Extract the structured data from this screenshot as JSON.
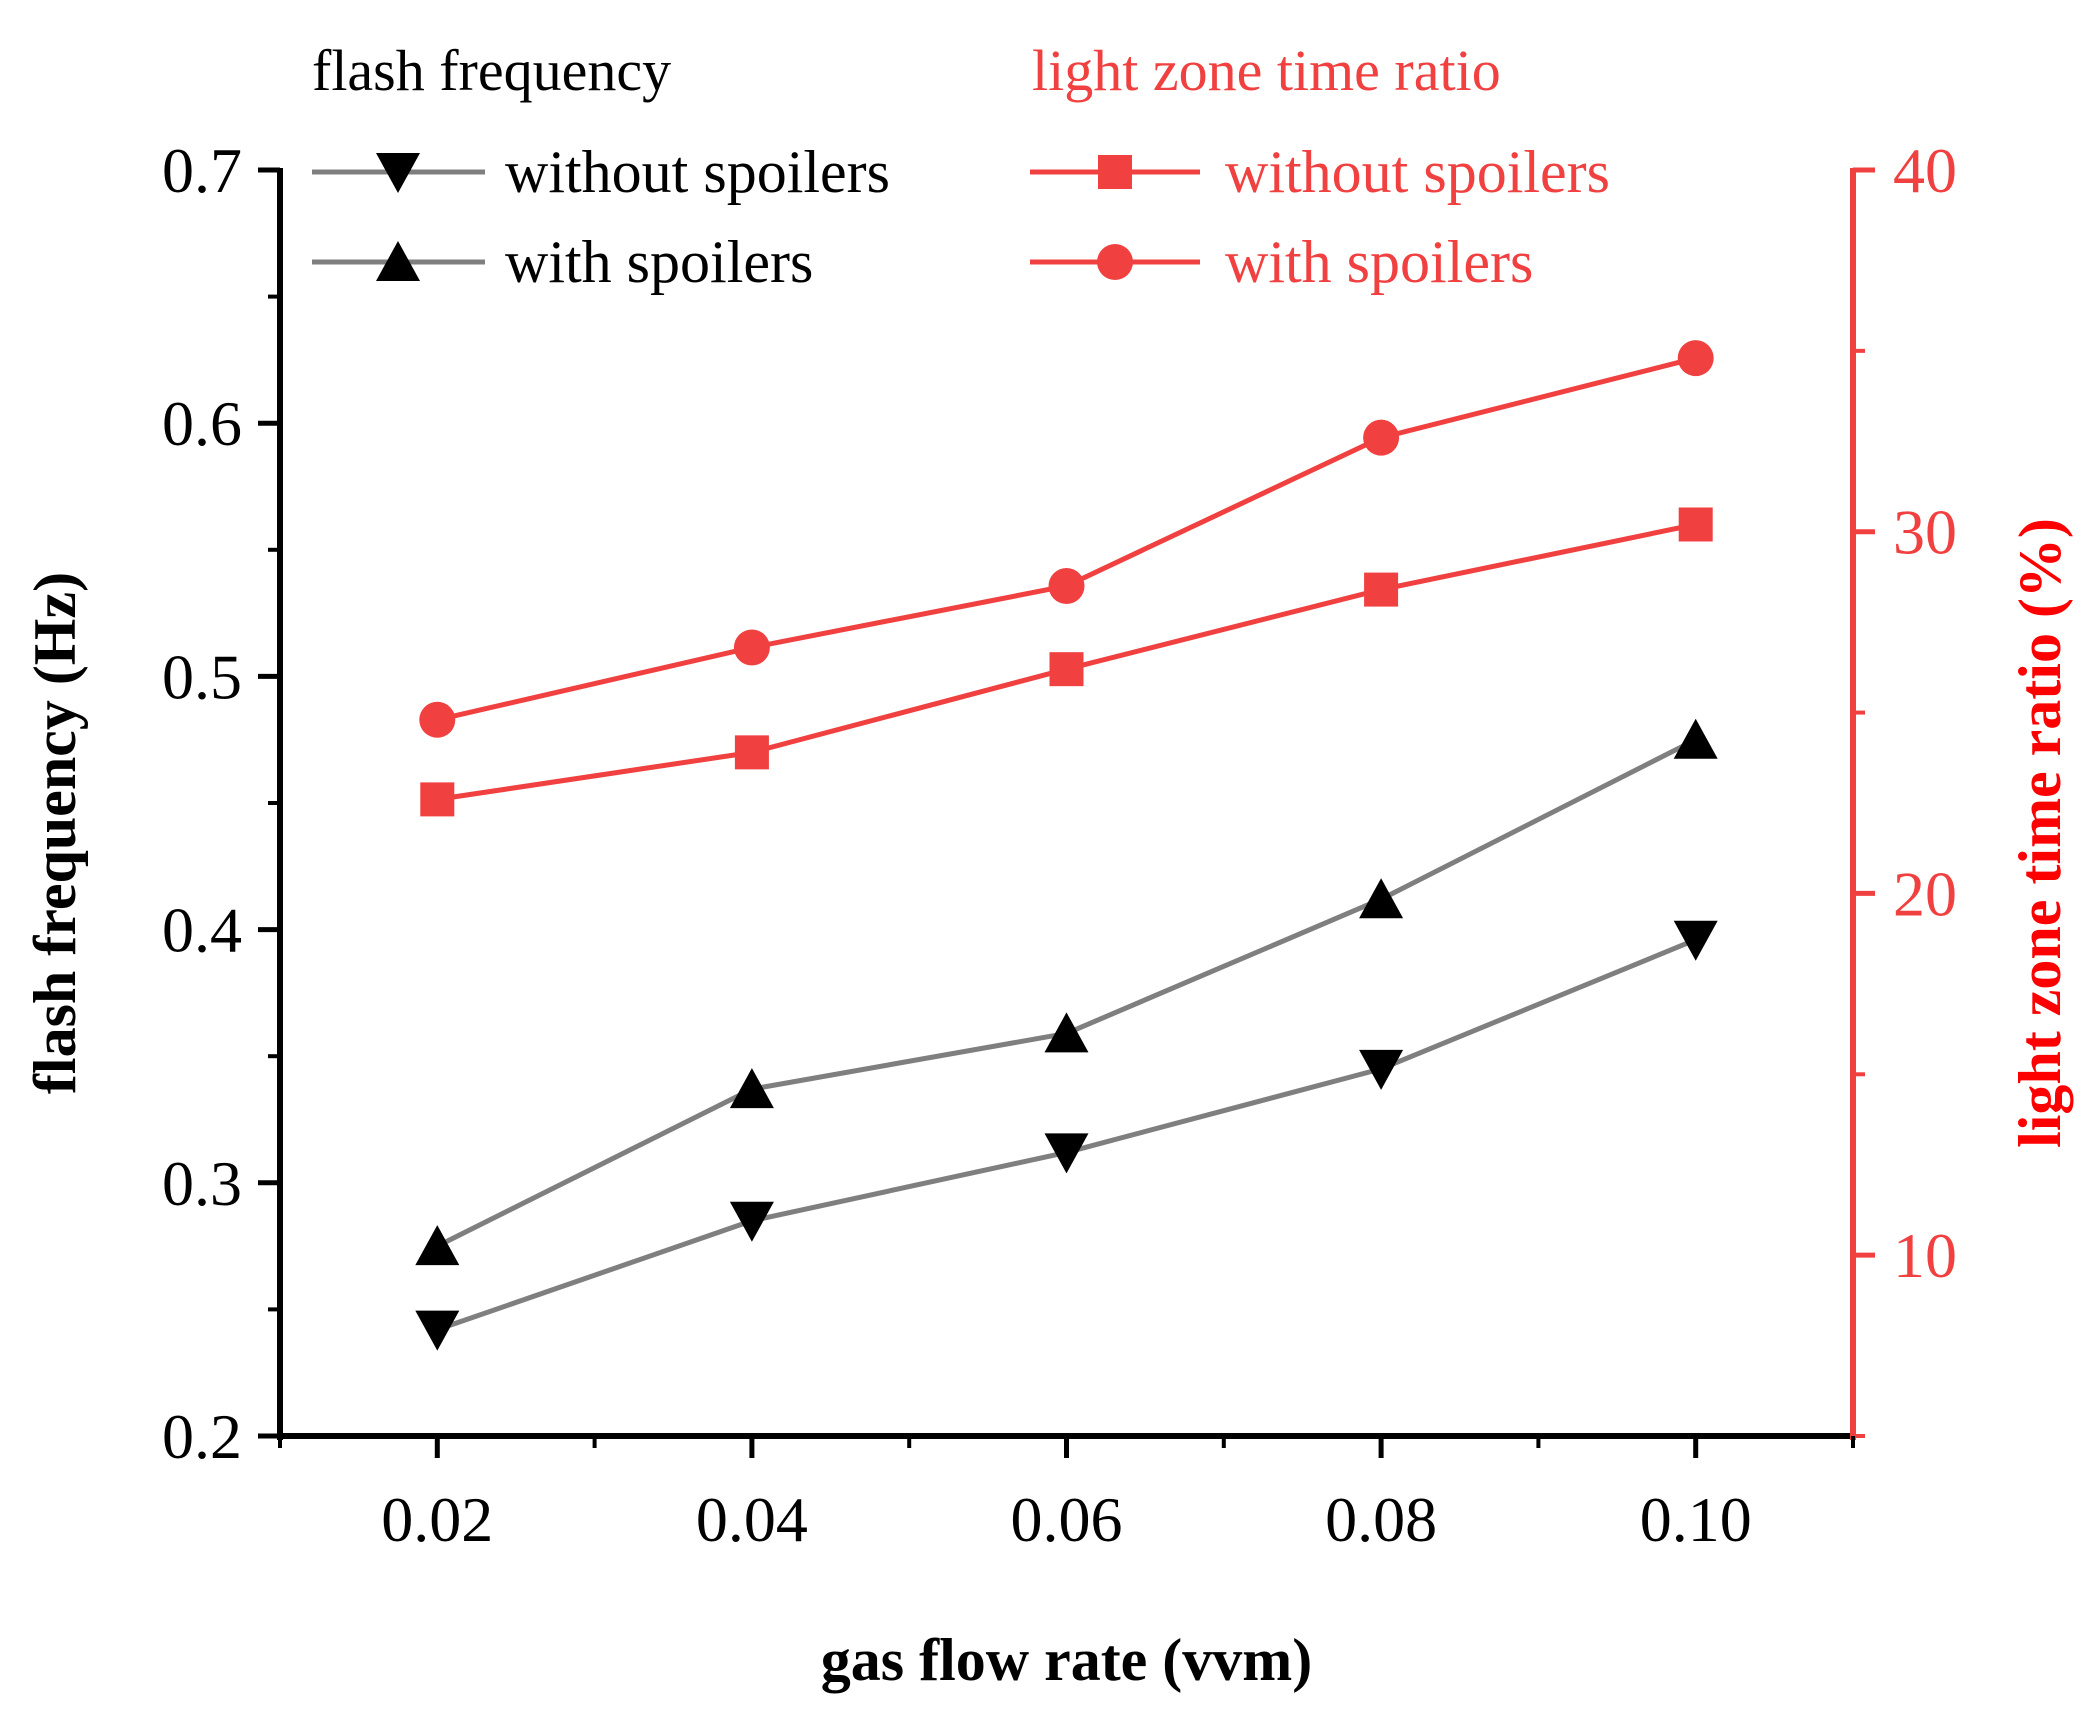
{
  "chart_data": {
    "type": "line",
    "title": "",
    "xlabel": "gas flow rate (vvm)",
    "ylabel": "flash frequency (Hz)",
    "y2label": "light zone time ratio (%)",
    "x": [
      0.02,
      0.04,
      0.06,
      0.08,
      0.1
    ],
    "x_tick_labels": [
      "0.02",
      "0.04",
      "0.06",
      "0.08",
      "0.10"
    ],
    "xlim": [
      0.01,
      0.11
    ],
    "ylim": [
      0.2,
      0.7
    ],
    "y_ticks": [
      0.2,
      0.3,
      0.4,
      0.5,
      0.6,
      0.7
    ],
    "y_tick_labels": [
      "0.2",
      "0.3",
      "0.4",
      "0.5",
      "0.6",
      "0.7"
    ],
    "y2lim": [
      5,
      40
    ],
    "y2_ticks": [
      10,
      20,
      30,
      40
    ],
    "y2_tick_labels": [
      "10",
      "20",
      "30",
      "40"
    ],
    "legend": {
      "left_header": "flash frequency",
      "right_header": "light zone time ratio",
      "placement": "top"
    },
    "series": [
      {
        "name": "without spoilers",
        "group": "flash frequency",
        "axis": "left",
        "marker": "triangle-down",
        "line_color": "#7f7f7f",
        "marker_color": "#000000",
        "values": [
          0.242,
          0.285,
          0.312,
          0.345,
          0.396
        ]
      },
      {
        "name": "with spoilers",
        "group": "flash frequency",
        "axis": "left",
        "marker": "triangle-up",
        "line_color": "#7f7f7f",
        "marker_color": "#000000",
        "values": [
          0.275,
          0.337,
          0.359,
          0.412,
          0.475
        ]
      },
      {
        "name": "without spoilers",
        "group": "light zone time ratio",
        "axis": "right",
        "marker": "square",
        "line_color": "#f04040",
        "marker_color": "#f04040",
        "values": [
          22.6,
          23.9,
          26.2,
          28.4,
          30.2
        ]
      },
      {
        "name": "with spoilers",
        "group": "light zone time ratio",
        "axis": "right",
        "marker": "circle",
        "line_color": "#f04040",
        "marker_color": "#f04040",
        "values": [
          24.8,
          26.8,
          28.5,
          32.6,
          34.8
        ]
      }
    ],
    "colors": {
      "left_axis": "#000000",
      "right_axis": "#f04040",
      "right_title": "#ff0000"
    }
  }
}
